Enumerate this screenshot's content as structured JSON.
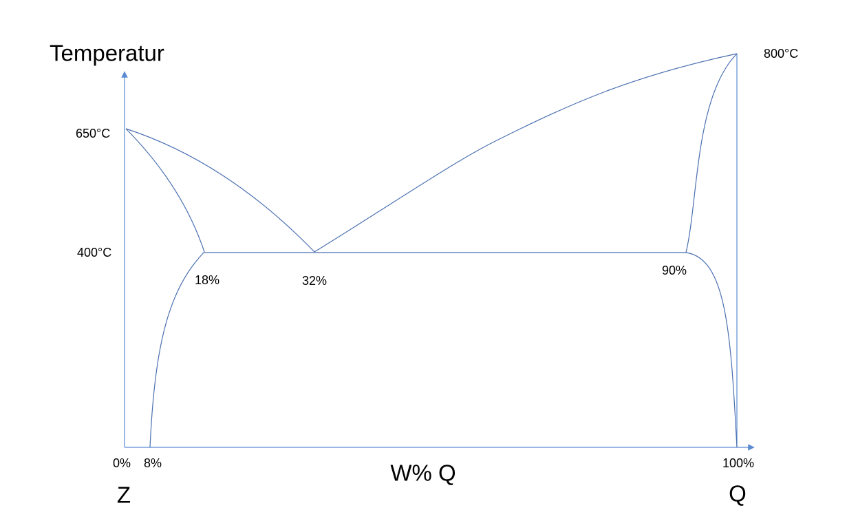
{
  "y_axis_label": "Temperatur",
  "temperature_labels": [
    "650°C",
    "400°C",
    "800°C"
  ],
  "composition_labels": [
    "18%",
    "32%",
    "90%"
  ],
  "x_tick_labels": [
    "0%",
    "8%",
    "100%"
  ],
  "x_axis_label": "W% Q",
  "components": [
    "Z",
    "Q"
  ]
}
